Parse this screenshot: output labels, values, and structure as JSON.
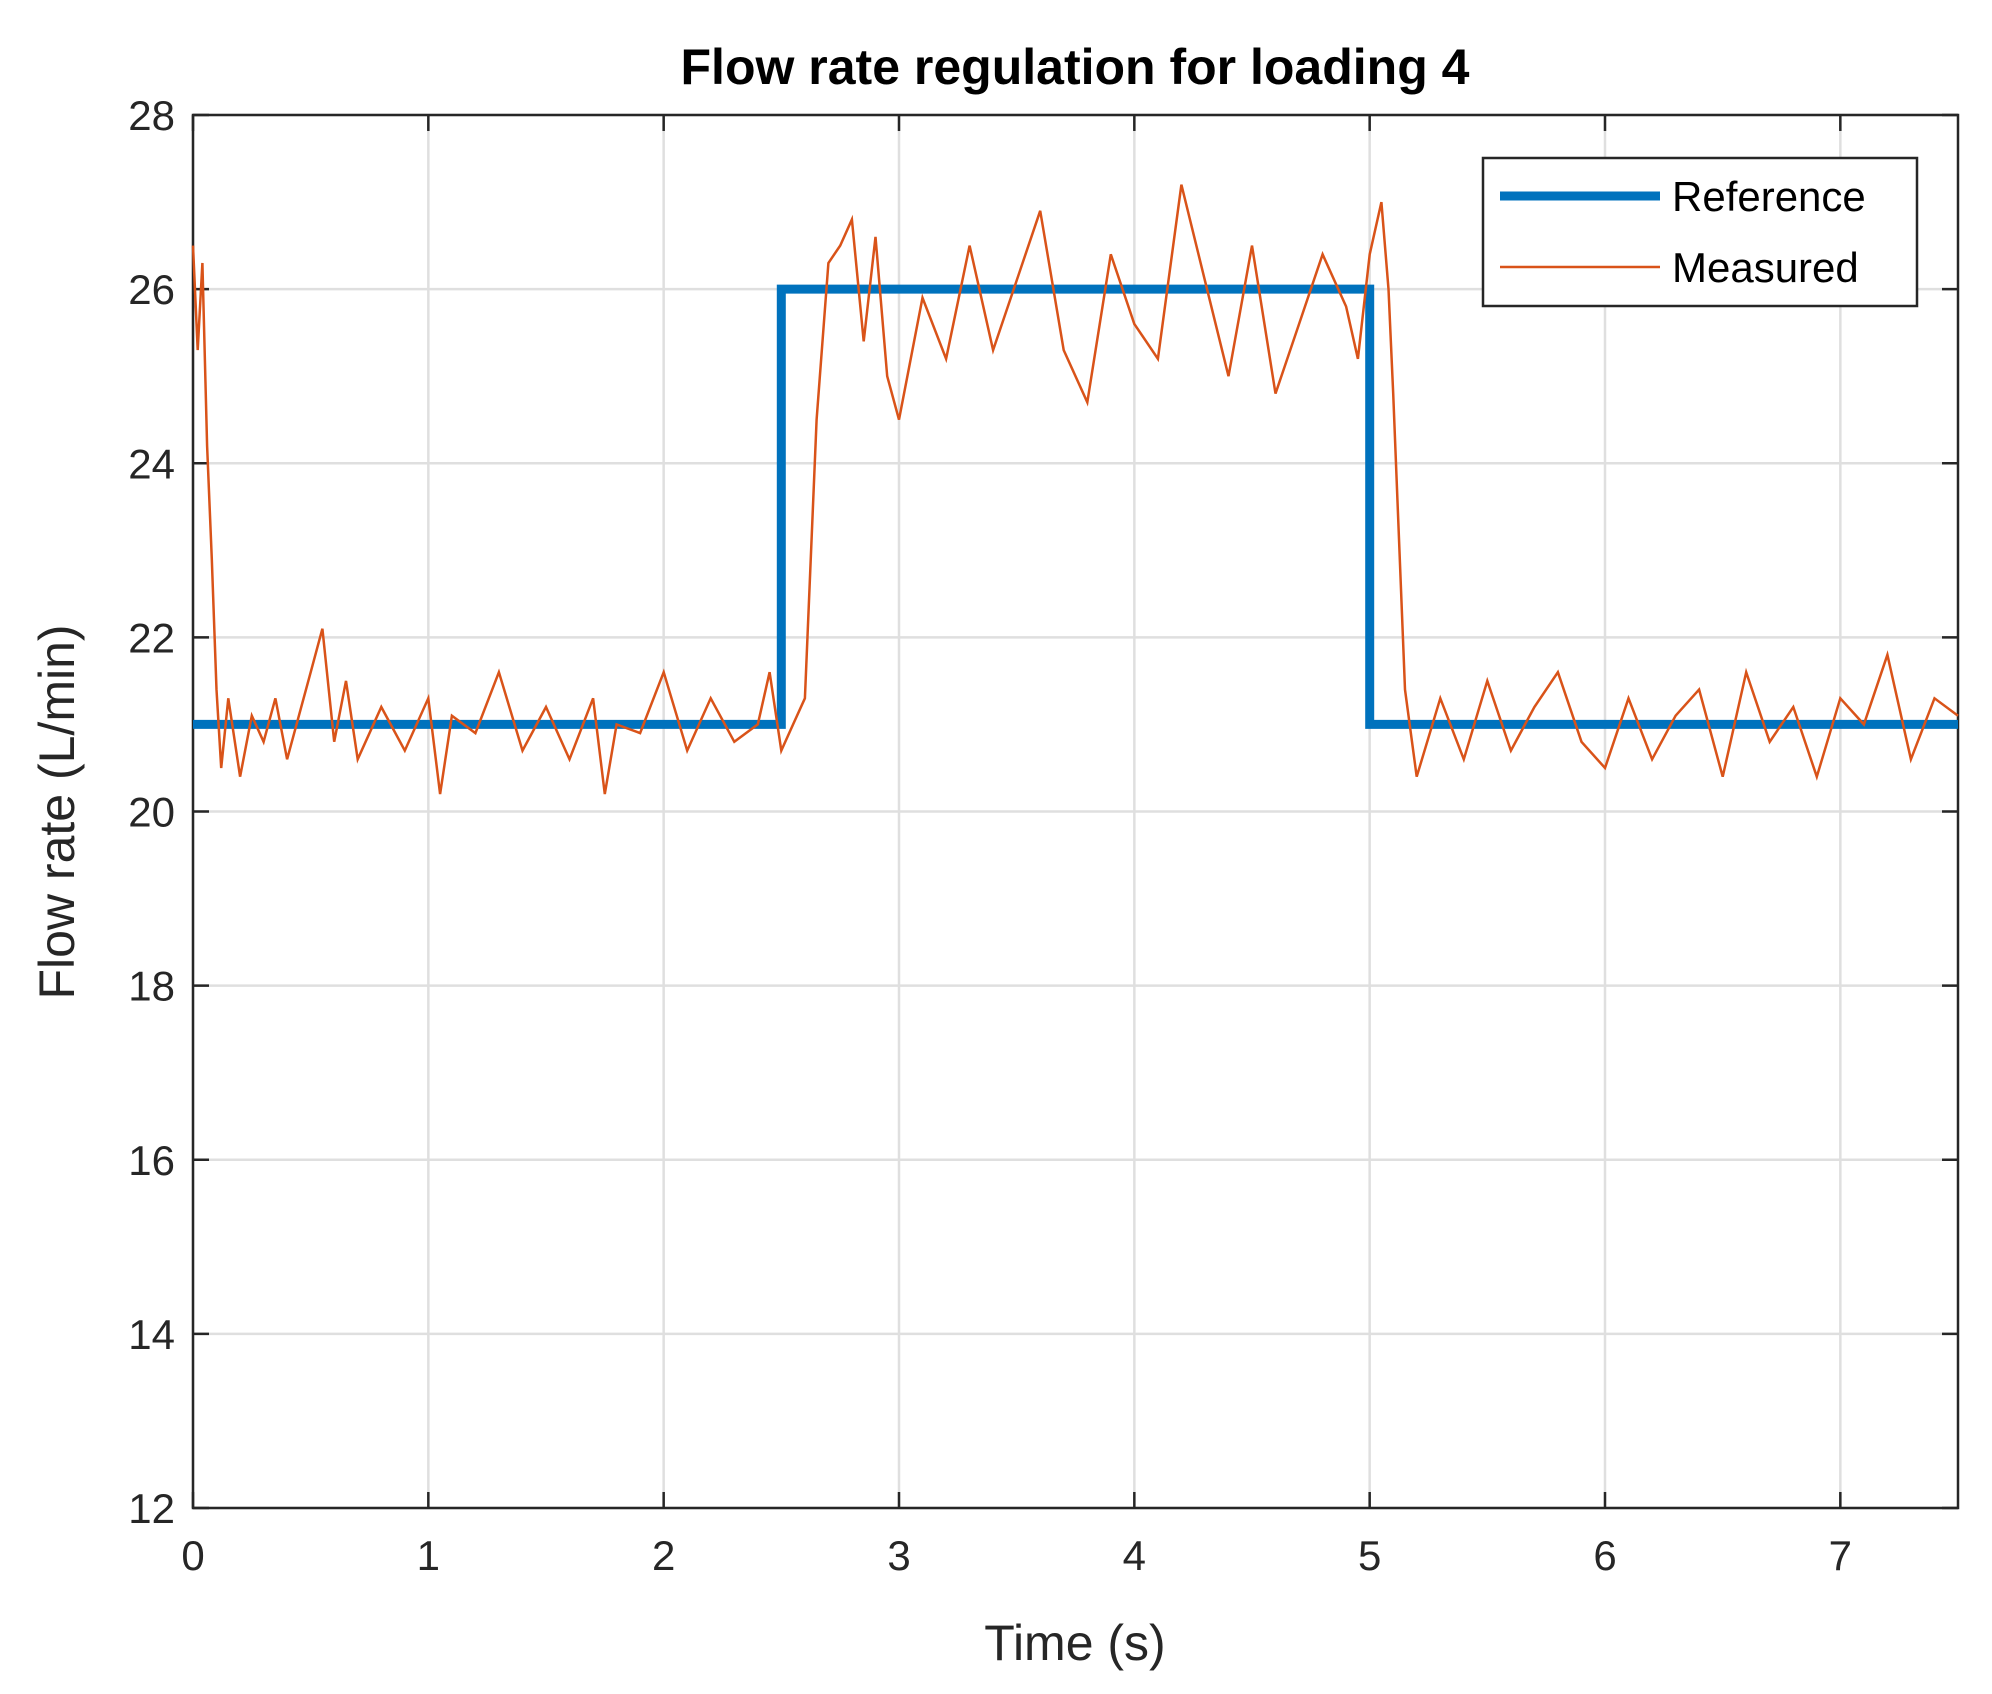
{
  "chart_data": {
    "type": "line",
    "title": "Flow rate regulation for loading 4",
    "xlabel": "Time (s)",
    "ylabel": "Flow rate (L/min)",
    "xlim": [
      0,
      7.5
    ],
    "ylim": [
      12,
      28
    ],
    "xticks": [
      0,
      1,
      2,
      3,
      4,
      5,
      6,
      7
    ],
    "yticks": [
      12,
      14,
      16,
      18,
      20,
      22,
      24,
      26,
      28
    ],
    "xtick_labels": [
      "0",
      "1",
      "2",
      "3",
      "4",
      "5",
      "6",
      "7"
    ],
    "ytick_labels": [
      "12",
      "14",
      "16",
      "18",
      "20",
      "22",
      "24",
      "26",
      "28"
    ],
    "grid": true,
    "legend_position": "top-right",
    "series": [
      {
        "name": "Reference",
        "color": "#0072BD",
        "x": [
          0,
          2.5,
          2.5,
          5.0,
          5.0,
          7.5
        ],
        "y": [
          21,
          21,
          26,
          26,
          21,
          21
        ]
      },
      {
        "name": "Measured",
        "color": "#D95319",
        "x": [
          0,
          0.02,
          0.04,
          0.06,
          0.08,
          0.1,
          0.12,
          0.15,
          0.2,
          0.25,
          0.3,
          0.35,
          0.4,
          0.45,
          0.5,
          0.55,
          0.6,
          0.65,
          0.7,
          0.8,
          0.9,
          1.0,
          1.05,
          1.1,
          1.2,
          1.3,
          1.4,
          1.5,
          1.6,
          1.7,
          1.75,
          1.8,
          1.9,
          2.0,
          2.1,
          2.2,
          2.3,
          2.4,
          2.45,
          2.5,
          2.55,
          2.6,
          2.65,
          2.7,
          2.75,
          2.8,
          2.85,
          2.9,
          2.95,
          3.0,
          3.1,
          3.2,
          3.3,
          3.4,
          3.5,
          3.6,
          3.7,
          3.8,
          3.9,
          4.0,
          4.1,
          4.2,
          4.3,
          4.4,
          4.5,
          4.6,
          4.7,
          4.8,
          4.9,
          4.95,
          5.0,
          5.05,
          5.08,
          5.1,
          5.15,
          5.2,
          5.3,
          5.4,
          5.5,
          5.6,
          5.7,
          5.8,
          5.9,
          6.0,
          6.1,
          6.2,
          6.3,
          6.4,
          6.5,
          6.6,
          6.7,
          6.8,
          6.9,
          7.0,
          7.1,
          7.2,
          7.3,
          7.4,
          7.5
        ],
        "y": [
          26.5,
          25.3,
          26.3,
          24.2,
          22.9,
          21.4,
          20.5,
          21.3,
          20.4,
          21.1,
          20.8,
          21.3,
          20.6,
          21.1,
          21.6,
          22.1,
          20.8,
          21.5,
          20.6,
          21.2,
          20.7,
          21.3,
          20.2,
          21.1,
          20.9,
          21.6,
          20.7,
          21.2,
          20.6,
          21.3,
          20.2,
          21.0,
          20.9,
          21.6,
          20.7,
          21.3,
          20.8,
          21.0,
          21.6,
          20.7,
          21.0,
          21.3,
          24.5,
          26.3,
          26.5,
          26.8,
          25.4,
          26.6,
          25.0,
          24.5,
          25.9,
          25.2,
          26.5,
          25.3,
          26.1,
          26.9,
          25.3,
          24.7,
          26.4,
          25.6,
          25.2,
          27.2,
          26.1,
          25.0,
          26.5,
          24.8,
          25.6,
          26.4,
          25.8,
          25.2,
          26.4,
          27.0,
          26.0,
          24.8,
          21.4,
          20.4,
          21.3,
          20.6,
          21.5,
          20.7,
          21.2,
          21.6,
          20.8,
          20.5,
          21.3,
          20.6,
          21.1,
          21.4,
          20.4,
          21.6,
          20.8,
          21.2,
          20.4,
          21.3,
          21.0,
          21.8,
          20.6,
          21.3,
          21.1
        ]
      }
    ]
  }
}
